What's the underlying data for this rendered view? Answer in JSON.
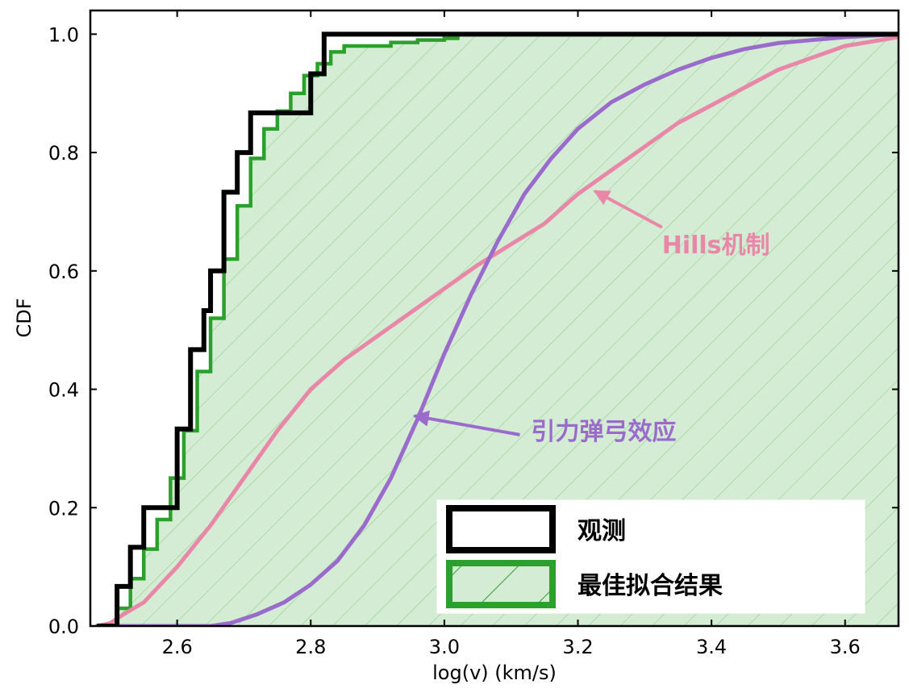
{
  "chart_data": {
    "type": "line",
    "xlabel": "log(v) (km/s)",
    "ylabel": "CDF",
    "xlim": [
      2.47,
      3.68
    ],
    "ylim": [
      0.0,
      1.04
    ],
    "xticks": [
      2.6,
      2.8,
      3.0,
      3.2,
      3.4,
      3.6
    ],
    "xtick_labels": [
      "2.6",
      "2.8",
      "3.0",
      "3.2",
      "3.4",
      "3.6"
    ],
    "yticks": [
      0.0,
      0.2,
      0.4,
      0.6,
      0.8,
      1.0
    ],
    "ytick_labels": [
      "0.0",
      "0.2",
      "0.4",
      "0.6",
      "0.8",
      "1.0"
    ],
    "grid": false,
    "legend_position": "lower-right",
    "series": [
      {
        "name": "观测",
        "style": "step",
        "color": "#000000",
        "x": [
          2.48,
          2.51,
          2.53,
          2.55,
          2.57,
          2.6,
          2.62,
          2.64,
          2.65,
          2.67,
          2.69,
          2.71,
          2.74,
          2.8,
          2.82,
          3.68
        ],
        "y": [
          0.0,
          0.067,
          0.133,
          0.2,
          0.2,
          0.333,
          0.467,
          0.533,
          0.6,
          0.733,
          0.8,
          0.867,
          0.867,
          0.933,
          1.0,
          1.0
        ]
      },
      {
        "name": "最佳拟合结果",
        "style": "step-filled-hatched",
        "color": "#2ca02c",
        "fill": "#d4ecd4",
        "x": [
          2.49,
          2.51,
          2.53,
          2.55,
          2.57,
          2.59,
          2.61,
          2.63,
          2.65,
          2.67,
          2.69,
          2.71,
          2.73,
          2.75,
          2.77,
          2.79,
          2.81,
          2.83,
          2.85,
          2.88,
          2.92,
          2.96,
          3.0,
          3.02,
          3.68
        ],
        "y": [
          0.0,
          0.03,
          0.08,
          0.13,
          0.18,
          0.25,
          0.33,
          0.43,
          0.52,
          0.62,
          0.71,
          0.79,
          0.84,
          0.87,
          0.9,
          0.93,
          0.95,
          0.97,
          0.98,
          0.98,
          0.986,
          0.99,
          0.993,
          1.0,
          1.0
        ]
      },
      {
        "name": "Hills机制",
        "style": "line",
        "color": "#e887a8",
        "x": [
          2.48,
          2.5,
          2.52,
          2.55,
          2.6,
          2.65,
          2.7,
          2.75,
          2.8,
          2.85,
          2.9,
          2.95,
          3.0,
          3.05,
          3.1,
          3.15,
          3.2,
          3.25,
          3.3,
          3.35,
          3.4,
          3.45,
          3.5,
          3.55,
          3.6,
          3.68
        ],
        "y": [
          0.0,
          0.005,
          0.02,
          0.04,
          0.1,
          0.17,
          0.25,
          0.33,
          0.4,
          0.45,
          0.49,
          0.53,
          0.57,
          0.61,
          0.645,
          0.68,
          0.73,
          0.77,
          0.81,
          0.85,
          0.88,
          0.91,
          0.94,
          0.96,
          0.98,
          0.995
        ]
      },
      {
        "name": "引力弹弓效应",
        "style": "line",
        "color": "#9a6bcb",
        "x": [
          2.48,
          2.6,
          2.65,
          2.68,
          2.72,
          2.76,
          2.8,
          2.84,
          2.88,
          2.92,
          2.96,
          3.0,
          3.04,
          3.08,
          3.12,
          3.16,
          3.2,
          3.25,
          3.3,
          3.35,
          3.4,
          3.45,
          3.5,
          3.55,
          3.6,
          3.68
        ],
        "y": [
          0.0,
          0.0,
          0.0,
          0.005,
          0.02,
          0.04,
          0.07,
          0.11,
          0.17,
          0.25,
          0.35,
          0.46,
          0.56,
          0.65,
          0.73,
          0.79,
          0.84,
          0.885,
          0.915,
          0.94,
          0.96,
          0.975,
          0.985,
          0.99,
          0.995,
          1.0
        ]
      }
    ],
    "annotations": [
      {
        "text": "Hills机制",
        "color": "#e887a8",
        "text_at": [
          3.35,
          0.63
        ],
        "arrow_to": [
          3.225,
          0.735
        ]
      },
      {
        "text": "引力弹弓效应",
        "color": "#9a6bcb",
        "text_at": [
          3.13,
          0.315
        ],
        "arrow_to": [
          2.955,
          0.355
        ]
      }
    ],
    "legend": [
      {
        "label": "观测",
        "swatch": "outline",
        "color": "#000000"
      },
      {
        "label": "最佳拟合结果",
        "swatch": "hatched",
        "color": "#2ca02c",
        "fill": "#d4ecd4"
      }
    ]
  }
}
